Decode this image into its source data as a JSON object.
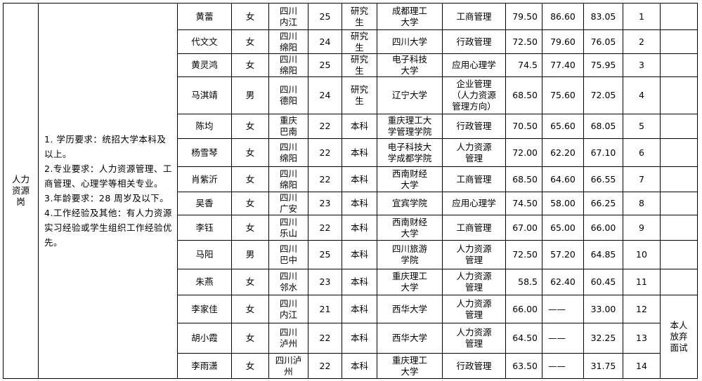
{
  "position": "人力\n资源\n岗",
  "requirements": [
    "1. 学历要求：统招大学本科及以上。",
    "2.专业要求：人力资源管理、工商管理、心理学等相关专业。",
    "3.年龄要求：28 周岁及以下。",
    "4.工作经验及其他：有人力资源实习经验或学生组织工作经验优先。"
  ],
  "rows": [
    {
      "name": "黄蕾",
      "gender": "女",
      "origin": "四川\n内江",
      "age": "25",
      "edu": "研究\n生",
      "school": "成都理工\n大学",
      "major": "工商管理",
      "score1": "79.50",
      "score2": "86.60",
      "total": "83.05",
      "rank": "1"
    },
    {
      "name": "代文文",
      "gender": "女",
      "origin": "四川\n绵阳",
      "age": "24",
      "edu": "研究\n生",
      "school": "四川大学",
      "major": "行政管理",
      "score1": "72.50",
      "score2": "79.60",
      "total": "76.05",
      "rank": "2"
    },
    {
      "name": "黄灵鸿",
      "gender": "女",
      "origin": "四川\n绵阳",
      "age": "25",
      "edu": "研究\n生",
      "school": "电子科技\n大学",
      "major": "应用心理学",
      "score1": "74.5",
      "score2": "77.40",
      "total": "75.95",
      "rank": "3"
    },
    {
      "name": "马淇靖",
      "gender": "男",
      "origin": "四川\n德阳",
      "age": "24",
      "edu": "研究\n生",
      "school": "辽宁大学",
      "major": "企业管理\n（人力资源\n管理方向）",
      "score1": "68.50",
      "score2": "75.60",
      "total": "72.05",
      "rank": "4"
    },
    {
      "name": "陈均",
      "gender": "女",
      "origin": "重庆\n巴南",
      "age": "22",
      "edu": "本科",
      "school": "重庆理工大\n学管理学院",
      "major": "行政管理",
      "score1": "70.50",
      "score2": "65.60",
      "total": "68.05",
      "rank": "5"
    },
    {
      "name": "杨雪琴",
      "gender": "女",
      "origin": "四川\n绵阳",
      "age": "22",
      "edu": "本科",
      "school": "电子科技大\n学成都学院",
      "major": "人力资源\n管理",
      "score1": "72.00",
      "score2": "62.20",
      "total": "67.10",
      "rank": "6"
    },
    {
      "name": "肖紫沂",
      "gender": "女",
      "origin": "四川\n绵阳",
      "age": "22",
      "edu": "本科",
      "school": "西南财经\n大学",
      "major": "工商管理",
      "score1": "68.50",
      "score2": "64.60",
      "total": "66.55",
      "rank": "7"
    },
    {
      "name": "吴香",
      "gender": "女",
      "origin": "四川\n广安",
      "age": "23",
      "edu": "本科",
      "school": "宜宾学院",
      "major": "应用心理学",
      "score1": "74.50",
      "score2": "58.00",
      "total": "66.25",
      "rank": "8"
    },
    {
      "name": "李钰",
      "gender": "女",
      "origin": "四川\n乐山",
      "age": "22",
      "edu": "本科",
      "school": "西南财经\n大学",
      "major": "工商管理",
      "score1": "67.00",
      "score2": "65.00",
      "total": "66.00",
      "rank": "9"
    },
    {
      "name": "马阳",
      "gender": "男",
      "origin": "四川\n巴中",
      "age": "25",
      "edu": "本科",
      "school": "四川旅游\n学院",
      "major": "人力资源\n管理",
      "score1": "72.50",
      "score2": "57.20",
      "total": "64.85",
      "rank": "10"
    },
    {
      "name": "朱燕",
      "gender": "女",
      "origin": "四川\n邻水",
      "age": "23",
      "edu": "本科",
      "school": "重庆理工\n大学",
      "major": "人力资源\n管理",
      "score1": "58.5",
      "score2": "62.40",
      "total": "60.45",
      "rank": "11"
    },
    {
      "name": "李家佳",
      "gender": "女",
      "origin": "四川\n内江",
      "age": "21",
      "edu": "本科",
      "school": "西华大学",
      "major": "人力资源\n管理",
      "score1": "66.00",
      "score2": "——",
      "total": "33.00",
      "rank": "12"
    },
    {
      "name": "胡小霞",
      "gender": "女",
      "origin": "四川\n泸州",
      "age": "22",
      "edu": "本科",
      "school": "西华大学",
      "major": "人力资源\n管理",
      "score1": "64.50",
      "score2": "——",
      "total": "32.25",
      "rank": "13"
    },
    {
      "name": "李雨潇",
      "gender": "女",
      "origin": "四川泸\n州",
      "age": "22",
      "edu": "本科",
      "school": "重庆理工\n大学",
      "major": "行政管理",
      "score1": "63.50",
      "score2": "——",
      "total": "31.75",
      "rank": "14"
    }
  ],
  "note": "本人\n放弃\n面试"
}
